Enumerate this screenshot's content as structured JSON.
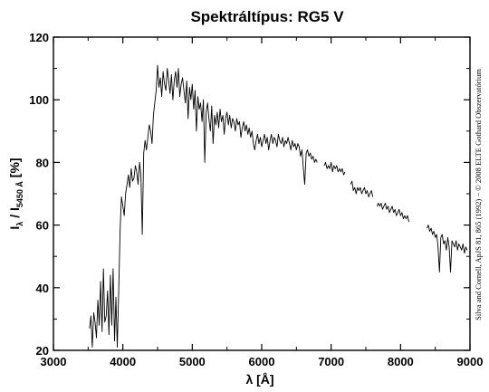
{
  "chart_data": {
    "type": "line",
    "title": "Spektráltípus: RG5 V",
    "xlabel": "λ [Å]",
    "ylabel_parts": {
      "i1": "I",
      "sub1": "λ",
      "sep": " / I",
      "sub2": "5450 Å",
      "unit": " [%]"
    },
    "credit": "Silva and Cornell, ApJS 81, 865 (1992) − © 2008 ELTE Gothard Obszervatórium",
    "xlim": [
      3000,
      9000
    ],
    "ylim": [
      20,
      120
    ],
    "xticks": [
      3000,
      4000,
      5000,
      6000,
      7000,
      8000,
      9000
    ],
    "yticks": [
      20,
      40,
      60,
      80,
      100,
      120
    ],
    "grid": false,
    "series": [
      {
        "segments": [
          {
            "x": [
              3520,
              3540,
              3560,
              3580,
              3600,
              3620,
              3640,
              3660,
              3680,
              3700,
              3720,
              3740,
              3760,
              3780,
              3800,
              3820,
              3840,
              3860,
              3880,
              3900,
              3920,
              3940,
              3960,
              3980,
              4000,
              4020,
              4040,
              4060,
              4080,
              4100,
              4120,
              4140,
              4160,
              4180,
              4200,
              4220,
              4240,
              4260,
              4280,
              4300,
              4320,
              4340,
              4360,
              4380,
              4400,
              4420,
              4440,
              4460,
              4480,
              4500,
              4520,
              4540,
              4560,
              4580,
              4600,
              4620,
              4640,
              4660,
              4680,
              4700,
              4720,
              4740,
              4760,
              4780,
              4800,
              4820,
              4840,
              4860,
              4880,
              4900,
              4920,
              4940,
              4960,
              4980,
              5000,
              5020,
              5040,
              5060,
              5080,
              5100,
              5120,
              5140,
              5160,
              5180,
              5200,
              5220,
              5240,
              5260,
              5280,
              5300,
              5320,
              5340,
              5360,
              5380,
              5400,
              5420,
              5440,
              5460,
              5480,
              5500,
              5520,
              5540,
              5560,
              5580,
              5600,
              5620,
              5640,
              5660,
              5680,
              5700,
              5720,
              5740,
              5760,
              5780,
              5800,
              5820,
              5840,
              5860,
              5880,
              5900,
              5920,
              5940,
              5960,
              5980,
              6000,
              6020,
              6040,
              6060,
              6080,
              6100,
              6120,
              6140,
              6160,
              6180,
              6200,
              6220,
              6240,
              6260,
              6280,
              6300,
              6320,
              6340,
              6360,
              6380,
              6400,
              6420,
              6440,
              6460,
              6480,
              6500,
              6520,
              6540,
              6560,
              6580,
              6600,
              6620,
              6640,
              6660,
              6680,
              6700,
              6720,
              6740,
              6760,
              6780,
              6800
            ],
            "y": [
              27,
              31,
              21,
              32,
              29,
              24,
              36,
              28,
              42,
              26,
              46,
              29,
              31,
              39,
              25,
              44,
              28,
              46,
              23,
              37,
              21,
              39,
              58,
              69,
              66,
              63,
              70,
              73,
              76,
              72,
              78,
              74,
              75,
              79,
              77,
              73,
              80,
              76,
              57,
              83,
              87,
              84,
              88,
              92,
              90,
              86,
              95,
              99,
              103,
              111,
              104,
              107,
              101,
              109,
              105,
              103,
              110,
              106,
              102,
              108,
              100,
              106,
              109,
              104,
              110,
              101,
              105,
              107,
              103,
              99,
              106,
              94,
              104,
              100,
              105,
              97,
              103,
              90,
              101,
              97,
              99,
              93,
              100,
              80,
              96,
              99,
              94,
              90,
              98,
              86,
              95,
              92,
              96,
              91,
              97,
              93,
              95,
              89,
              94,
              96,
              92,
              95,
              91,
              94,
              93,
              90,
              94,
              92,
              93,
              88,
              91,
              93,
              90,
              92,
              89,
              91,
              88,
              90,
              86,
              84,
              87,
              89,
              86,
              88,
              85,
              87,
              89,
              86,
              88,
              84,
              87,
              89,
              86,
              88,
              87,
              85,
              89,
              87,
              86,
              88,
              85,
              87,
              86,
              88,
              86,
              84,
              87,
              85,
              86,
              84,
              86,
              85,
              82,
              84,
              78,
              73,
              83,
              84,
              82,
              83,
              81,
              82,
              80,
              81,
              80
            ]
          },
          {
            "x": [
              6900,
              6920,
              6940,
              6960,
              6980,
              7000,
              7020,
              7040,
              7060,
              7080,
              7100,
              7120,
              7140,
              7160,
              7180,
              7200
            ],
            "y": [
              79,
              80,
              78,
              79,
              78,
              80,
              77,
              79,
              78,
              79,
              77,
              78,
              77,
              78,
              76,
              77
            ]
          },
          {
            "x": [
              7280,
              7300,
              7320,
              7340,
              7360,
              7380,
              7400,
              7420,
              7440,
              7460,
              7480,
              7500,
              7520,
              7540,
              7560,
              7580,
              7600
            ],
            "y": [
              73,
              74,
              71,
              72,
              70,
              72,
              71,
              72,
              70,
              71,
              72,
              70,
              71,
              69,
              70,
              71,
              69
            ]
          },
          {
            "x": [
              7660,
              7680,
              7700,
              7720,
              7740,
              7760,
              7780,
              7800,
              7820,
              7840,
              7860,
              7880,
              7900,
              7920,
              7940,
              7960,
              7980,
              8000,
              8020,
              8040,
              8060,
              8080,
              8100,
              8120
            ],
            "y": [
              66,
              67,
              66,
              67,
              65,
              66,
              67,
              65,
              66,
              64,
              65,
              66,
              64,
              65,
              63,
              64,
              65,
              63,
              64,
              62,
              63,
              62,
              63,
              61
            ]
          },
          {
            "x": [
              8380,
              8400,
              8420,
              8440,
              8460,
              8480,
              8500,
              8520,
              8540,
              8560,
              8580,
              8600,
              8620,
              8640,
              8660,
              8680,
              8700,
              8720,
              8740,
              8760,
              8780,
              8800,
              8820,
              8840,
              8860,
              8880,
              8900,
              8920,
              8940,
              8960
            ],
            "y": [
              59,
              60,
              58,
              59,
              57,
              58,
              56,
              57,
              53,
              45,
              56,
              57,
              54,
              55,
              52,
              56,
              53,
              45,
              55,
              54,
              53,
              55,
              52,
              54,
              53,
              52,
              54,
              51,
              53,
              52
            ]
          }
        ]
      }
    ]
  }
}
